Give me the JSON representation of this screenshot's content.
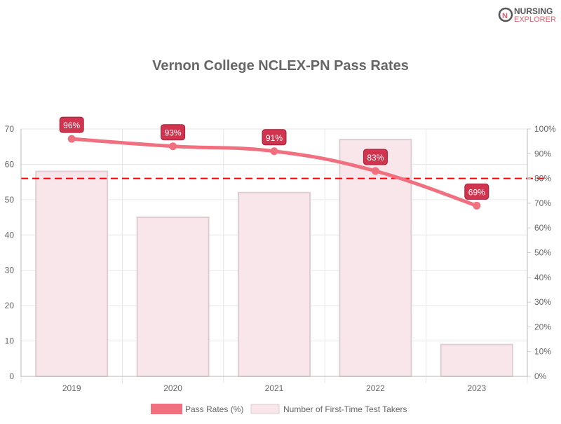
{
  "logo": {
    "line1": "NURSING",
    "line2": "EXPLORER"
  },
  "chart_data": {
    "type": "bar+line",
    "title": "Vernon College NCLEX-PN Pass Rates",
    "categories": [
      "2019",
      "2020",
      "2021",
      "2022",
      "2023"
    ],
    "series": [
      {
        "name": "Pass Rates (%)",
        "type": "line",
        "axis": "right",
        "values": [
          96,
          93,
          91,
          83,
          69
        ],
        "color": "#f07080",
        "labels": [
          "96%",
          "93%",
          "91%",
          "83%",
          "69%"
        ]
      },
      {
        "name": "Number of First-Time Test Takers",
        "type": "bar",
        "axis": "left",
        "values": [
          58,
          45,
          52,
          67,
          9
        ],
        "color": "#f8e6ea",
        "border": "#e0cdd2"
      }
    ],
    "y_left": {
      "range": [
        0,
        70
      ],
      "ticks": [
        "0",
        "10",
        "20",
        "30",
        "40",
        "50",
        "60",
        "70"
      ]
    },
    "y_right": {
      "range": [
        0,
        100
      ],
      "ticks": [
        "0%",
        "10%",
        "20%",
        "30%",
        "40%",
        "50%",
        "60%",
        "70%",
        "80%",
        "90%",
        "100%"
      ]
    },
    "reference_line": {
      "value": 80,
      "axis": "right",
      "color": "#ff0000",
      "style": "dashed"
    },
    "label_color": "#d0344e",
    "grid": true,
    "legend": "bottom"
  }
}
